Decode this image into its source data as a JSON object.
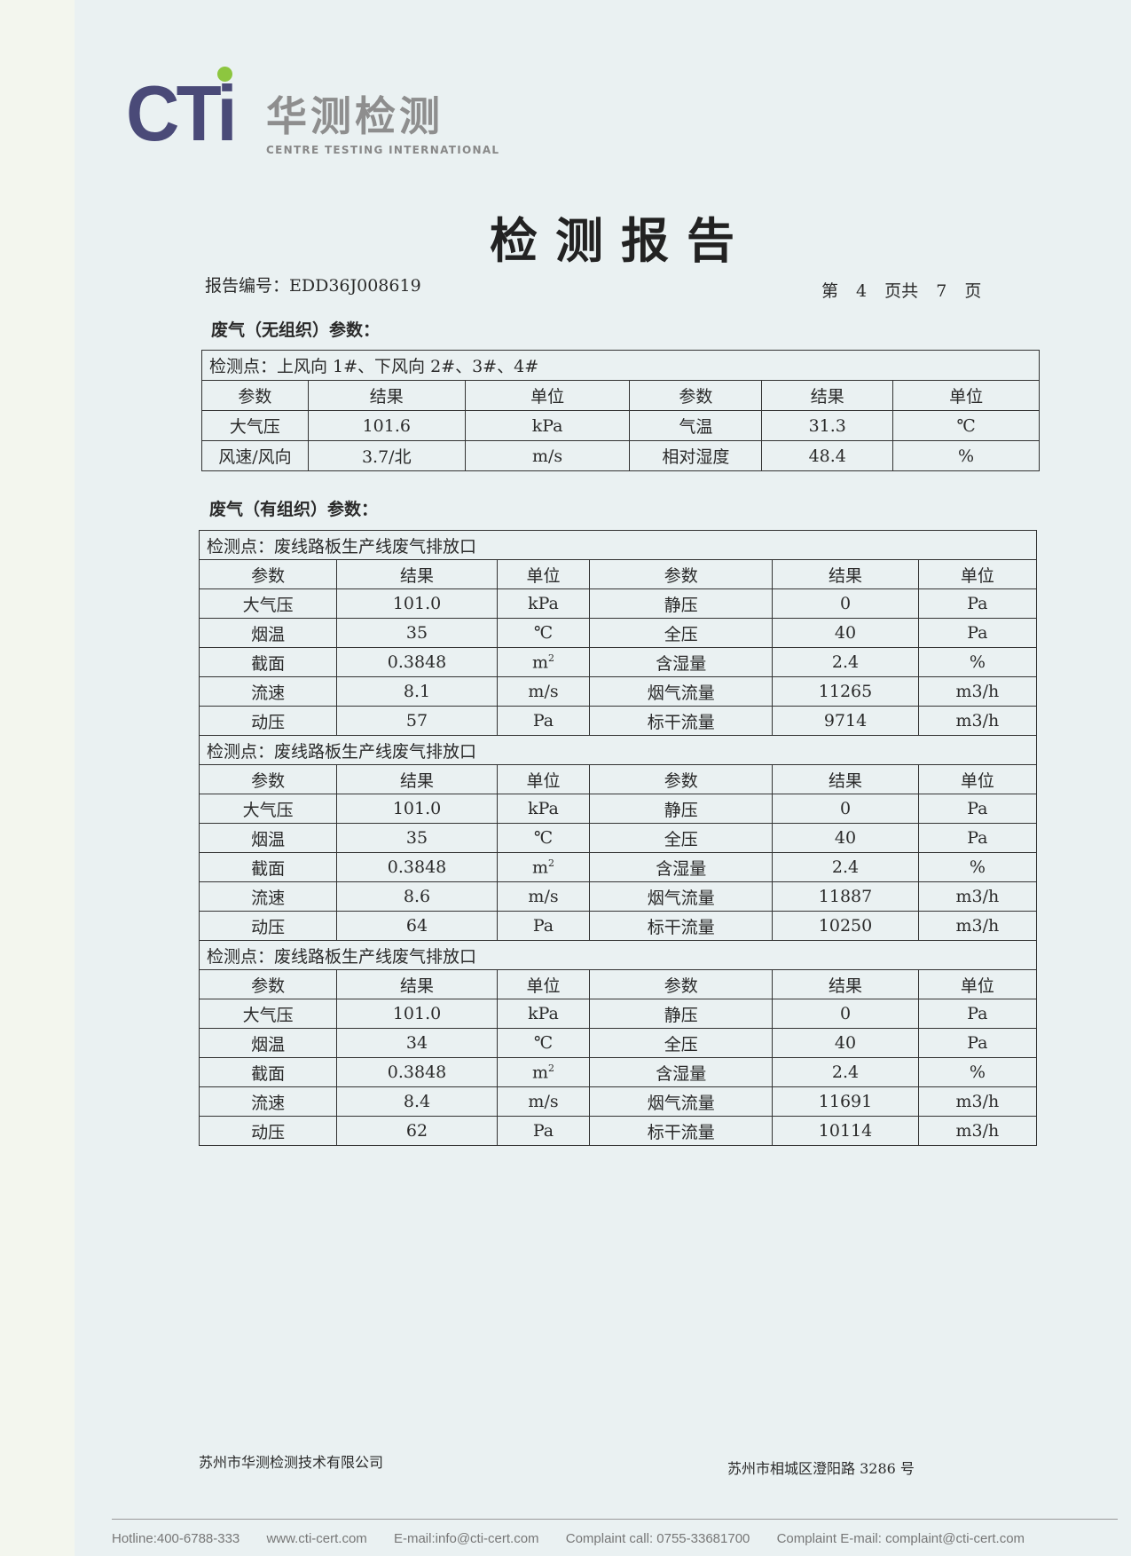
{
  "logo": {
    "brand": "CTi",
    "name_cn": "华测检测",
    "name_en": "CENTRE TESTING INTERNATIONAL",
    "accent": "#8dc63f",
    "brand_color": "#4a4a78"
  },
  "title": "检测报告",
  "report_no": "报告编号：EDD36J008619",
  "page_info": "第 4 页共 7 页",
  "section1": {
    "heading": "废气（无组织）参数：",
    "point": "检测点：上风向 1#、下风向 2#、3#、4#",
    "headers": [
      "参数",
      "结果",
      "单位",
      "参数",
      "结果",
      "单位"
    ],
    "rows": [
      [
        "大气压",
        "101.6",
        "kPa",
        "气温",
        "31.3",
        "℃"
      ],
      [
        "风速/风向",
        "3.7/北",
        "m/s",
        "相对湿度",
        "48.4",
        "%"
      ]
    ]
  },
  "section2": {
    "heading": "废气（有组织）参数：",
    "headers": [
      "参数",
      "结果",
      "单位",
      "参数",
      "结果",
      "单位"
    ],
    "blocks": [
      {
        "point": "检测点：废线路板生产线废气排放口",
        "rows": [
          [
            "大气压",
            "101.0",
            "kPa",
            "静压",
            "0",
            "Pa"
          ],
          [
            "烟温",
            "35",
            "℃",
            "全压",
            "40",
            "Pa"
          ],
          [
            "截面",
            "0.3848",
            "m2",
            "含湿量",
            "2.4",
            "%"
          ],
          [
            "流速",
            "8.1",
            "m/s",
            "烟气流量",
            "11265",
            "m3/h"
          ],
          [
            "动压",
            "57",
            "Pa",
            "标干流量",
            "9714",
            "m3/h"
          ]
        ]
      },
      {
        "point": "检测点：废线路板生产线废气排放口",
        "rows": [
          [
            "大气压",
            "101.0",
            "kPa",
            "静压",
            "0",
            "Pa"
          ],
          [
            "烟温",
            "35",
            "℃",
            "全压",
            "40",
            "Pa"
          ],
          [
            "截面",
            "0.3848",
            "m2",
            "含湿量",
            "2.4",
            "%"
          ],
          [
            "流速",
            "8.6",
            "m/s",
            "烟气流量",
            "11887",
            "m3/h"
          ],
          [
            "动压",
            "64",
            "Pa",
            "标干流量",
            "10250",
            "m3/h"
          ]
        ]
      },
      {
        "point": "检测点：废线路板生产线废气排放口",
        "rows": [
          [
            "大气压",
            "101.0",
            "kPa",
            "静压",
            "0",
            "Pa"
          ],
          [
            "烟温",
            "34",
            "℃",
            "全压",
            "40",
            "Pa"
          ],
          [
            "截面",
            "0.3848",
            "m2",
            "含湿量",
            "2.4",
            "%"
          ],
          [
            "流速",
            "8.4",
            "m/s",
            "烟气流量",
            "11691",
            "m3/h"
          ],
          [
            "动压",
            "62",
            "Pa",
            "标干流量",
            "10114",
            "m3/h"
          ]
        ]
      }
    ]
  },
  "footer": {
    "company": "苏州市华测检测技术有限公司",
    "address": "苏州市相城区澄阳路 3286 号",
    "hotline": "Hotline:400-6788-333",
    "website": "www.cti-cert.com",
    "email": "E-mail:info@cti-cert.com",
    "complaint_call": "Complaint call: 0755-33681700",
    "complaint_email": "Complaint E-mail: complaint@cti-cert.com"
  }
}
